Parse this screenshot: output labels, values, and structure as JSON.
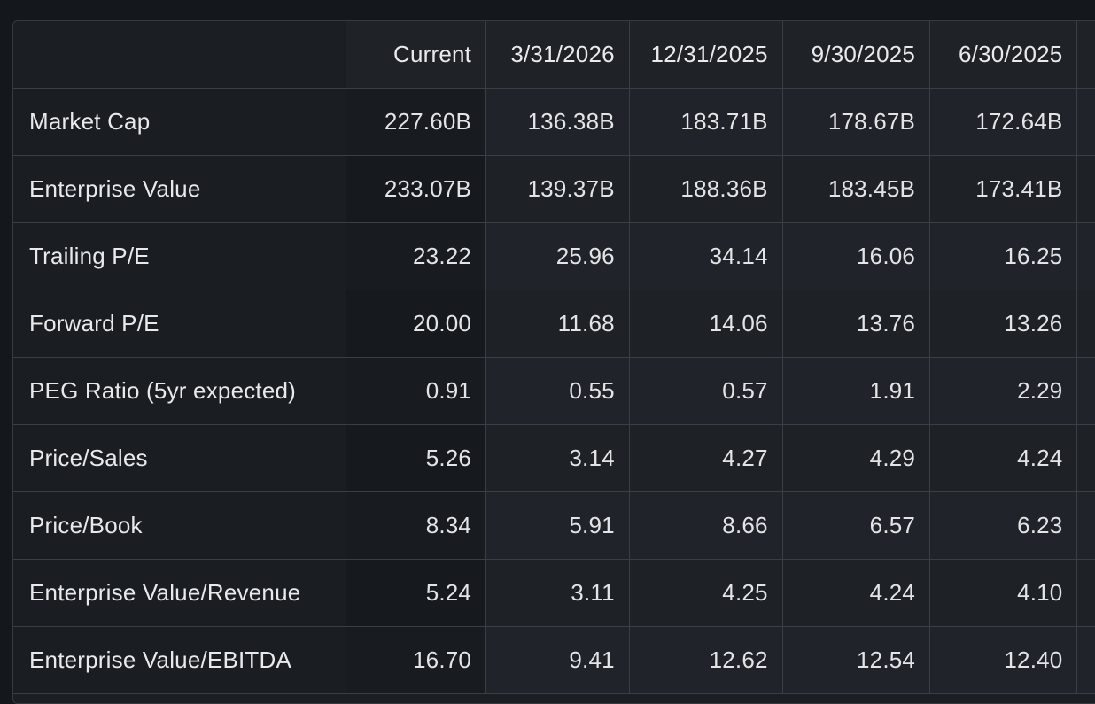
{
  "table": {
    "columns": [
      "Current",
      "3/31/2026",
      "12/31/2025",
      "9/30/2025",
      "6/30/2025"
    ],
    "rows": [
      {
        "label": "Market Cap",
        "values": [
          "227.60B",
          "136.38B",
          "183.71B",
          "178.67B",
          "172.64B"
        ]
      },
      {
        "label": "Enterprise Value",
        "values": [
          "233.07B",
          "139.37B",
          "188.36B",
          "183.45B",
          "173.41B"
        ]
      },
      {
        "label": "Trailing P/E",
        "values": [
          "23.22",
          "25.96",
          "34.14",
          "16.06",
          "16.25"
        ]
      },
      {
        "label": "Forward P/E",
        "values": [
          "20.00",
          "11.68",
          "14.06",
          "13.76",
          "13.26"
        ]
      },
      {
        "label": "PEG Ratio (5yr expected)",
        "values": [
          "0.91",
          "0.55",
          "0.57",
          "1.91",
          "2.29"
        ]
      },
      {
        "label": "Price/Sales",
        "values": [
          "5.26",
          "3.14",
          "4.27",
          "4.29",
          "4.24"
        ]
      },
      {
        "label": "Price/Book",
        "values": [
          "8.34",
          "5.91",
          "8.66",
          "6.57",
          "6.23"
        ]
      },
      {
        "label": "Enterprise Value/Revenue",
        "values": [
          "5.24",
          "3.11",
          "4.25",
          "4.24",
          "4.10"
        ]
      },
      {
        "label": "Enterprise Value/EBITDA",
        "values": [
          "16.70",
          "9.41",
          "12.62",
          "12.54",
          "12.40"
        ]
      }
    ]
  },
  "colors": {
    "background": "#14171c",
    "table_background": "#1b1e23",
    "border": "#3a3f46",
    "text": "#e6e7e9"
  }
}
